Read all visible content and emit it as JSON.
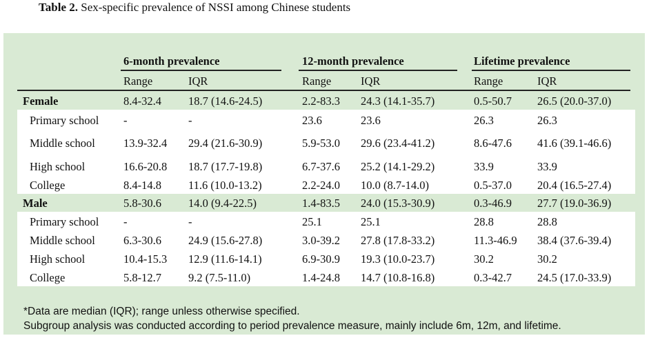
{
  "title": {
    "label": "Table 2.",
    "text": "Sex-specific prevalence of NSSI among Chinese students"
  },
  "headers": {
    "groups": [
      "6-month prevalence",
      "12-month prevalence",
      "Lifetime prevalence"
    ],
    "sub": [
      "Range",
      "IQR",
      "Range",
      "IQR",
      "Range",
      "IQR"
    ]
  },
  "rows": [
    {
      "label": "Female",
      "group": true,
      "cells": [
        "8.4-32.4",
        "18.7 (14.6-24.5)",
        "2.2-83.3",
        "24.3 (14.1-35.7)",
        "0.5-50.7",
        "26.5 (20.0-37.0)"
      ]
    },
    {
      "label": "Primary school",
      "group": false,
      "cells": [
        "-",
        "-",
        "23.6",
        "23.6",
        "26.3",
        "26.3"
      ]
    },
    {
      "label": "Middle school",
      "group": false,
      "cells": [
        "13.9-32.4",
        "29.4 (21.6-30.9)",
        "5.9-53.0",
        "29.6 (23.4-41.2)",
        "8.6-47.6",
        "41.6 (39.1-46.6)"
      ]
    },
    {
      "label": "High school",
      "group": false,
      "cells": [
        "16.6-20.8",
        "18.7 (17.7-19.8)",
        "6.7-37.6",
        "25.2 (14.1-29.2)",
        "33.9",
        "33.9"
      ]
    },
    {
      "label": "College",
      "group": false,
      "cells": [
        "8.4-14.8",
        "11.6 (10.0-13.2)",
        "2.2-24.0",
        "10.0 (8.7-14.0)",
        "0.5-37.0",
        "20.4 (16.5-27.4)"
      ]
    },
    {
      "label": "Male",
      "group": true,
      "cells": [
        "5.8-30.6",
        "14.0 (9.4-22.5)",
        "1.4-83.5",
        "24.0 (15.3-30.9)",
        "0.3-46.9",
        "27.7 (19.0-36.9)"
      ]
    },
    {
      "label": "Primary school",
      "group": false,
      "cells": [
        "-",
        "-",
        "25.1",
        "25.1",
        "28.8",
        "28.8"
      ]
    },
    {
      "label": "Middle school",
      "group": false,
      "cells": [
        "6.3-30.6",
        "24.9 (15.6-27.8)",
        "3.0-39.2",
        "27.8 (17.8-33.2)",
        "11.3-46.9",
        "38.4 (37.6-39.4)"
      ]
    },
    {
      "label": "High school",
      "group": false,
      "cells": [
        "10.4-15.3",
        "12.9 (11.6-14.1)",
        "6.9-30.9",
        "19.3 (10.0-23.7)",
        "30.2",
        "30.2"
      ]
    },
    {
      "label": "College",
      "group": false,
      "cells": [
        "5.8-12.7",
        "9.2 (7.5-11.0)",
        "1.4-24.8",
        "14.7 (10.8-16.8)",
        "0.3-42.7",
        "24.5 (17.0-33.9)"
      ]
    }
  ],
  "notes": [
    "*Data are median (IQR); range unless otherwise specified.",
    "Subgroup analysis was conducted according to period prevalence measure, mainly include 6m, 12m, and lifetime."
  ]
}
